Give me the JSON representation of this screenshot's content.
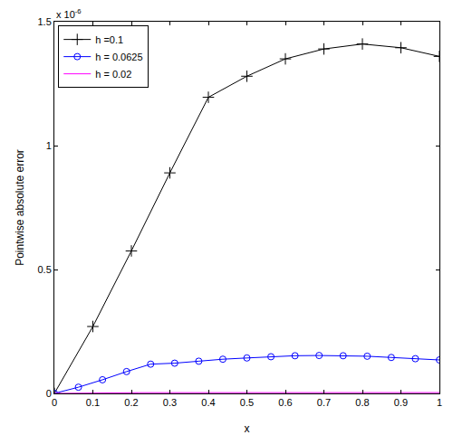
{
  "chart_data": {
    "type": "line",
    "x_label": "x",
    "y_label": "Pointwise absolute error",
    "y_multiplier": {
      "text": "x 10",
      "superscript": "-6"
    },
    "xlim": [
      0,
      1
    ],
    "xticks": [
      0,
      0.1,
      0.2,
      0.3,
      0.4,
      0.5,
      0.6,
      0.7,
      0.8,
      0.9,
      1
    ],
    "ylim": [
      0,
      1.5
    ],
    "yticks": [
      0,
      0.5,
      1,
      1.5
    ],
    "grid": false,
    "legend": "upper left",
    "series": [
      {
        "name": "h =0.1",
        "color": "#000000",
        "marker": "plus",
        "line_style": "solid",
        "x": [
          0,
          0.1,
          0.2,
          0.3,
          0.4,
          0.5,
          0.6,
          0.7,
          0.8,
          0.9,
          1
        ],
        "values": [
          0,
          0.27,
          0.575,
          0.89,
          1.195,
          1.28,
          1.35,
          1.39,
          1.41,
          1.395,
          1.36
        ]
      },
      {
        "name": "h = 0.0625",
        "color": "#0000ff",
        "marker": "circle",
        "line_style": "solid",
        "x": [
          0,
          0.0625,
          0.125,
          0.1875,
          0.25,
          0.3125,
          0.375,
          0.4375,
          0.5,
          0.5625,
          0.625,
          0.6875,
          0.75,
          0.8125,
          0.875,
          0.9375,
          1
        ],
        "values": [
          0,
          0.025,
          0.055,
          0.088,
          0.118,
          0.122,
          0.13,
          0.138,
          0.143,
          0.148,
          0.152,
          0.153,
          0.152,
          0.15,
          0.145,
          0.14,
          0.135
        ]
      },
      {
        "name": "h = 0.02",
        "color": "#ff00ff",
        "marker": "none",
        "line_style": "solid",
        "x": [
          0,
          0.02,
          0.04,
          0.06,
          0.08,
          0.1,
          0.12,
          0.14,
          0.16,
          0.18,
          0.2,
          0.22,
          0.24,
          0.26,
          0.28,
          0.3,
          0.32,
          0.34,
          0.36,
          0.38,
          0.4,
          0.42,
          0.44,
          0.46,
          0.48,
          0.5,
          0.52,
          0.54,
          0.56,
          0.58,
          0.6,
          0.62,
          0.64,
          0.66,
          0.68,
          0.7,
          0.72,
          0.74,
          0.76,
          0.78,
          0.8,
          0.82,
          0.84,
          0.86,
          0.88,
          0.9,
          0.92,
          0.94,
          0.96,
          0.98,
          1
        ],
        "values": [
          0,
          0.0005,
          0.001,
          0.0014,
          0.0018,
          0.002,
          0.0022,
          0.0024,
          0.0026,
          0.0027,
          0.0028,
          0.0029,
          0.003,
          0.003,
          0.0031,
          0.0031,
          0.0032,
          0.0032,
          0.0032,
          0.0033,
          0.0033,
          0.0033,
          0.0033,
          0.0034,
          0.0034,
          0.0034,
          0.0034,
          0.0034,
          0.0034,
          0.0034,
          0.0035,
          0.0035,
          0.0035,
          0.0035,
          0.0035,
          0.0035,
          0.0035,
          0.0035,
          0.0035,
          0.0035,
          0.0035,
          0.0035,
          0.0034,
          0.0034,
          0.0034,
          0.0034,
          0.0034,
          0.0034,
          0.0033,
          0.0033,
          0.0033
        ]
      }
    ]
  }
}
